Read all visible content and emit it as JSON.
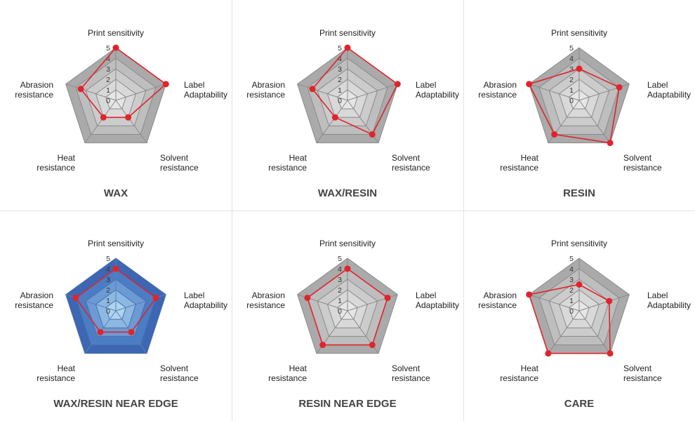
{
  "axes": [
    "Print sensitivity",
    "Label Adaptability",
    "Solvent resistance",
    "Heat resistance",
    "Abrasion resistance"
  ],
  "axis_label_lines": [
    [
      "Print sensitivity"
    ],
    [
      "Label",
      "Adaptability"
    ],
    [
      "Solvent",
      "resistance"
    ],
    [
      "Heat",
      "resistance"
    ],
    [
      "Abrasion",
      "resistance"
    ]
  ],
  "ticks": [
    "0",
    "1",
    "2",
    "3",
    "4",
    "5"
  ],
  "colors": {
    "gray_rings": [
      "#aaaaaa",
      "#bebebe",
      "#cccccc",
      "#d9d9d9",
      "#e6e6e6",
      "#f2f2f2"
    ],
    "blue_rings": [
      "#3d67b2",
      "#4a7dc4",
      "#6c9ad4",
      "#8cb8e2",
      "#aed4ee",
      "#d3ecf8"
    ],
    "series": "#e0242c"
  },
  "chart_data": [
    {
      "type": "radar",
      "title": "WAX",
      "theme": "gray",
      "categories": [
        "Print sensitivity",
        "Label Adaptability",
        "Solvent resistance",
        "Heat resistance",
        "Abrasion resistance"
      ],
      "values": [
        5,
        5,
        2,
        2,
        3.5
      ],
      "rmax": 5
    },
    {
      "type": "radar",
      "title": "WAX/RESIN",
      "theme": "gray",
      "categories": [
        "Print sensitivity",
        "Label Adaptability",
        "Solvent resistance",
        "Heat resistance",
        "Abrasion resistance"
      ],
      "values": [
        5,
        5,
        4,
        2,
        3.5
      ],
      "rmax": 5
    },
    {
      "type": "radar",
      "title": "RESIN",
      "theme": "gray",
      "categories": [
        "Print sensitivity",
        "Label Adaptability",
        "Solvent resistance",
        "Heat resistance",
        "Abrasion resistance"
      ],
      "values": [
        3,
        4,
        5,
        4,
        5
      ],
      "rmax": 5
    },
    {
      "type": "radar",
      "title": "WAX/RESIN NEAR EDGE",
      "theme": "blue",
      "categories": [
        "Print sensitivity",
        "Label Adaptability",
        "Solvent resistance",
        "Heat resistance",
        "Abrasion resistance"
      ],
      "values": [
        4,
        4,
        2.5,
        2.5,
        4
      ],
      "rmax": 5
    },
    {
      "type": "radar",
      "title": "RESIN NEAR EDGE",
      "theme": "gray",
      "categories": [
        "Print sensitivity",
        "Label Adaptability",
        "Solvent resistance",
        "Heat resistance",
        "Abrasion resistance"
      ],
      "values": [
        4,
        4,
        4,
        4,
        4
      ],
      "rmax": 5
    },
    {
      "type": "radar",
      "title": "CARE",
      "theme": "gray",
      "categories": [
        "Print sensitivity",
        "Label Adaptability",
        "Solvent resistance",
        "Heat resistance",
        "Abrasion resistance"
      ],
      "values": [
        2.5,
        3,
        5,
        5,
        5
      ],
      "rmax": 5
    }
  ]
}
